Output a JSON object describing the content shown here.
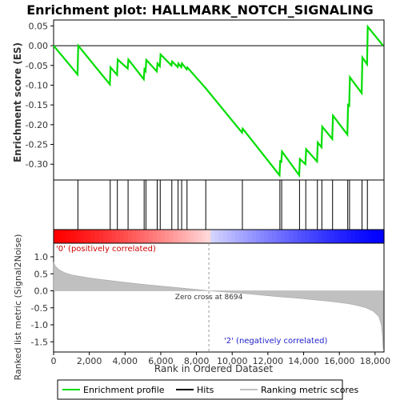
{
  "chart_data": {
    "type": "line",
    "title": "Enrichment plot: HALLMARK_NOTCH_SIGNALING",
    "xlabel": "Rank in Ordered Dataset",
    "xlim": [
      0,
      18500
    ],
    "xticks": [
      0,
      2000,
      4000,
      6000,
      8000,
      10000,
      12000,
      14000,
      16000,
      18000
    ],
    "xtick_labels": [
      "0",
      "2,000",
      "4,000",
      "6,000",
      "8,000",
      "10,000",
      "12,000",
      "14,000",
      "16,000",
      "18,000"
    ],
    "es_panel": {
      "ylabel": "Enrichment score (ES)",
      "ylim": [
        -0.34,
        0.065
      ],
      "yticks": [
        0.05,
        0.0,
        -0.05,
        -0.1,
        -0.15,
        -0.2,
        -0.25,
        -0.3
      ],
      "ytick_labels": [
        "0.05",
        "0.00",
        "-0.05",
        "-0.10",
        "-0.15",
        "-0.20",
        "-0.25",
        "-0.30"
      ],
      "color": "#00dd00",
      "points": [
        [
          0,
          0.0
        ],
        [
          1340,
          -0.073
        ],
        [
          1380,
          0.0
        ],
        [
          3150,
          -0.098
        ],
        [
          3190,
          -0.055
        ],
        [
          3550,
          -0.074
        ],
        [
          3590,
          -0.035
        ],
        [
          4150,
          -0.058
        ],
        [
          4190,
          -0.035
        ],
        [
          5050,
          -0.085
        ],
        [
          5090,
          -0.06
        ],
        [
          5150,
          -0.064
        ],
        [
          5190,
          -0.036
        ],
        [
          5780,
          -0.065
        ],
        [
          5820,
          -0.045
        ],
        [
          5950,
          -0.052
        ],
        [
          5990,
          -0.022
        ],
        [
          6600,
          -0.05
        ],
        [
          6640,
          -0.04
        ],
        [
          6950,
          -0.054
        ],
        [
          6990,
          -0.045
        ],
        [
          7150,
          -0.054
        ],
        [
          7190,
          -0.045
        ],
        [
          7450,
          -0.06
        ],
        [
          7490,
          -0.055
        ],
        [
          8500,
          -0.107
        ],
        [
          10550,
          -0.22
        ],
        [
          10590,
          -0.21
        ],
        [
          12650,
          -0.328
        ],
        [
          12690,
          -0.29
        ],
        [
          12750,
          -0.296
        ],
        [
          12790,
          -0.268
        ],
        [
          13750,
          -0.328
        ],
        [
          13790,
          -0.287
        ],
        [
          14100,
          -0.3
        ],
        [
          14140,
          -0.262
        ],
        [
          14750,
          -0.293
        ],
        [
          14790,
          -0.245
        ],
        [
          15000,
          -0.257
        ],
        [
          15040,
          -0.205
        ],
        [
          15600,
          -0.236
        ],
        [
          15640,
          -0.177
        ],
        [
          16450,
          -0.225
        ],
        [
          16490,
          -0.15
        ],
        [
          16550,
          -0.152
        ],
        [
          16590,
          -0.08
        ],
        [
          17250,
          -0.12
        ],
        [
          17290,
          -0.03
        ],
        [
          17550,
          -0.047
        ],
        [
          17590,
          0.048
        ],
        [
          18450,
          0.0
        ]
      ]
    },
    "hits": [
      1360,
      3170,
      3570,
      4170,
      5070,
      5170,
      5800,
      5970,
      6620,
      6970,
      7170,
      7470,
      8520,
      10570,
      12670,
      12770,
      13770,
      14120,
      14770,
      15020,
      15620,
      16470,
      16570,
      17270,
      17570
    ],
    "metric_panel": {
      "ylabel": "Ranked list metric (Signal2Noise)",
      "ylim": [
        -1.8,
        1.4
      ],
      "yticks": [
        1.0,
        0.5,
        0.0,
        -0.5,
        -1.0,
        -1.5
      ],
      "ytick_labels": [
        "1.0",
        "0.5",
        "0.0",
        "-0.5",
        "-1.0",
        "-1.5"
      ],
      "profile": [
        [
          0,
          0.85
        ],
        [
          100,
          0.72
        ],
        [
          300,
          0.62
        ],
        [
          600,
          0.54
        ],
        [
          1000,
          0.47
        ],
        [
          2000,
          0.38
        ],
        [
          3000,
          0.31
        ],
        [
          4000,
          0.25
        ],
        [
          5000,
          0.19
        ],
        [
          6000,
          0.14
        ],
        [
          7000,
          0.09
        ],
        [
          8000,
          0.04
        ],
        [
          8694,
          0.0
        ],
        [
          9500,
          -0.03
        ],
        [
          10500,
          -0.07
        ],
        [
          11500,
          -0.12
        ],
        [
          12500,
          -0.17
        ],
        [
          13500,
          -0.21
        ],
        [
          14500,
          -0.26
        ],
        [
          15500,
          -0.31
        ],
        [
          16500,
          -0.38
        ],
        [
          17000,
          -0.43
        ],
        [
          17500,
          -0.5
        ],
        [
          17900,
          -0.6
        ],
        [
          18200,
          -0.75
        ],
        [
          18350,
          -1.0
        ],
        [
          18420,
          -1.35
        ],
        [
          18450,
          -1.7
        ]
      ],
      "fill_color": "#c0c0c0",
      "zero_cross_label": "Zero cross at 8694",
      "zero_cross_rank": 8694,
      "pos_label": "'0' (positively correlated)",
      "neg_label": "'2' (negatively correlated)",
      "pos_color": "#ff0000",
      "neg_color": "#0000ff"
    },
    "legend": [
      {
        "label": "Enrichment profile",
        "color": "#00dd00"
      },
      {
        "label": "Hits",
        "color": "#000000"
      },
      {
        "label": "Ranking metric scores",
        "color": "#c0c0c0"
      }
    ],
    "legend_position": "bottom"
  }
}
